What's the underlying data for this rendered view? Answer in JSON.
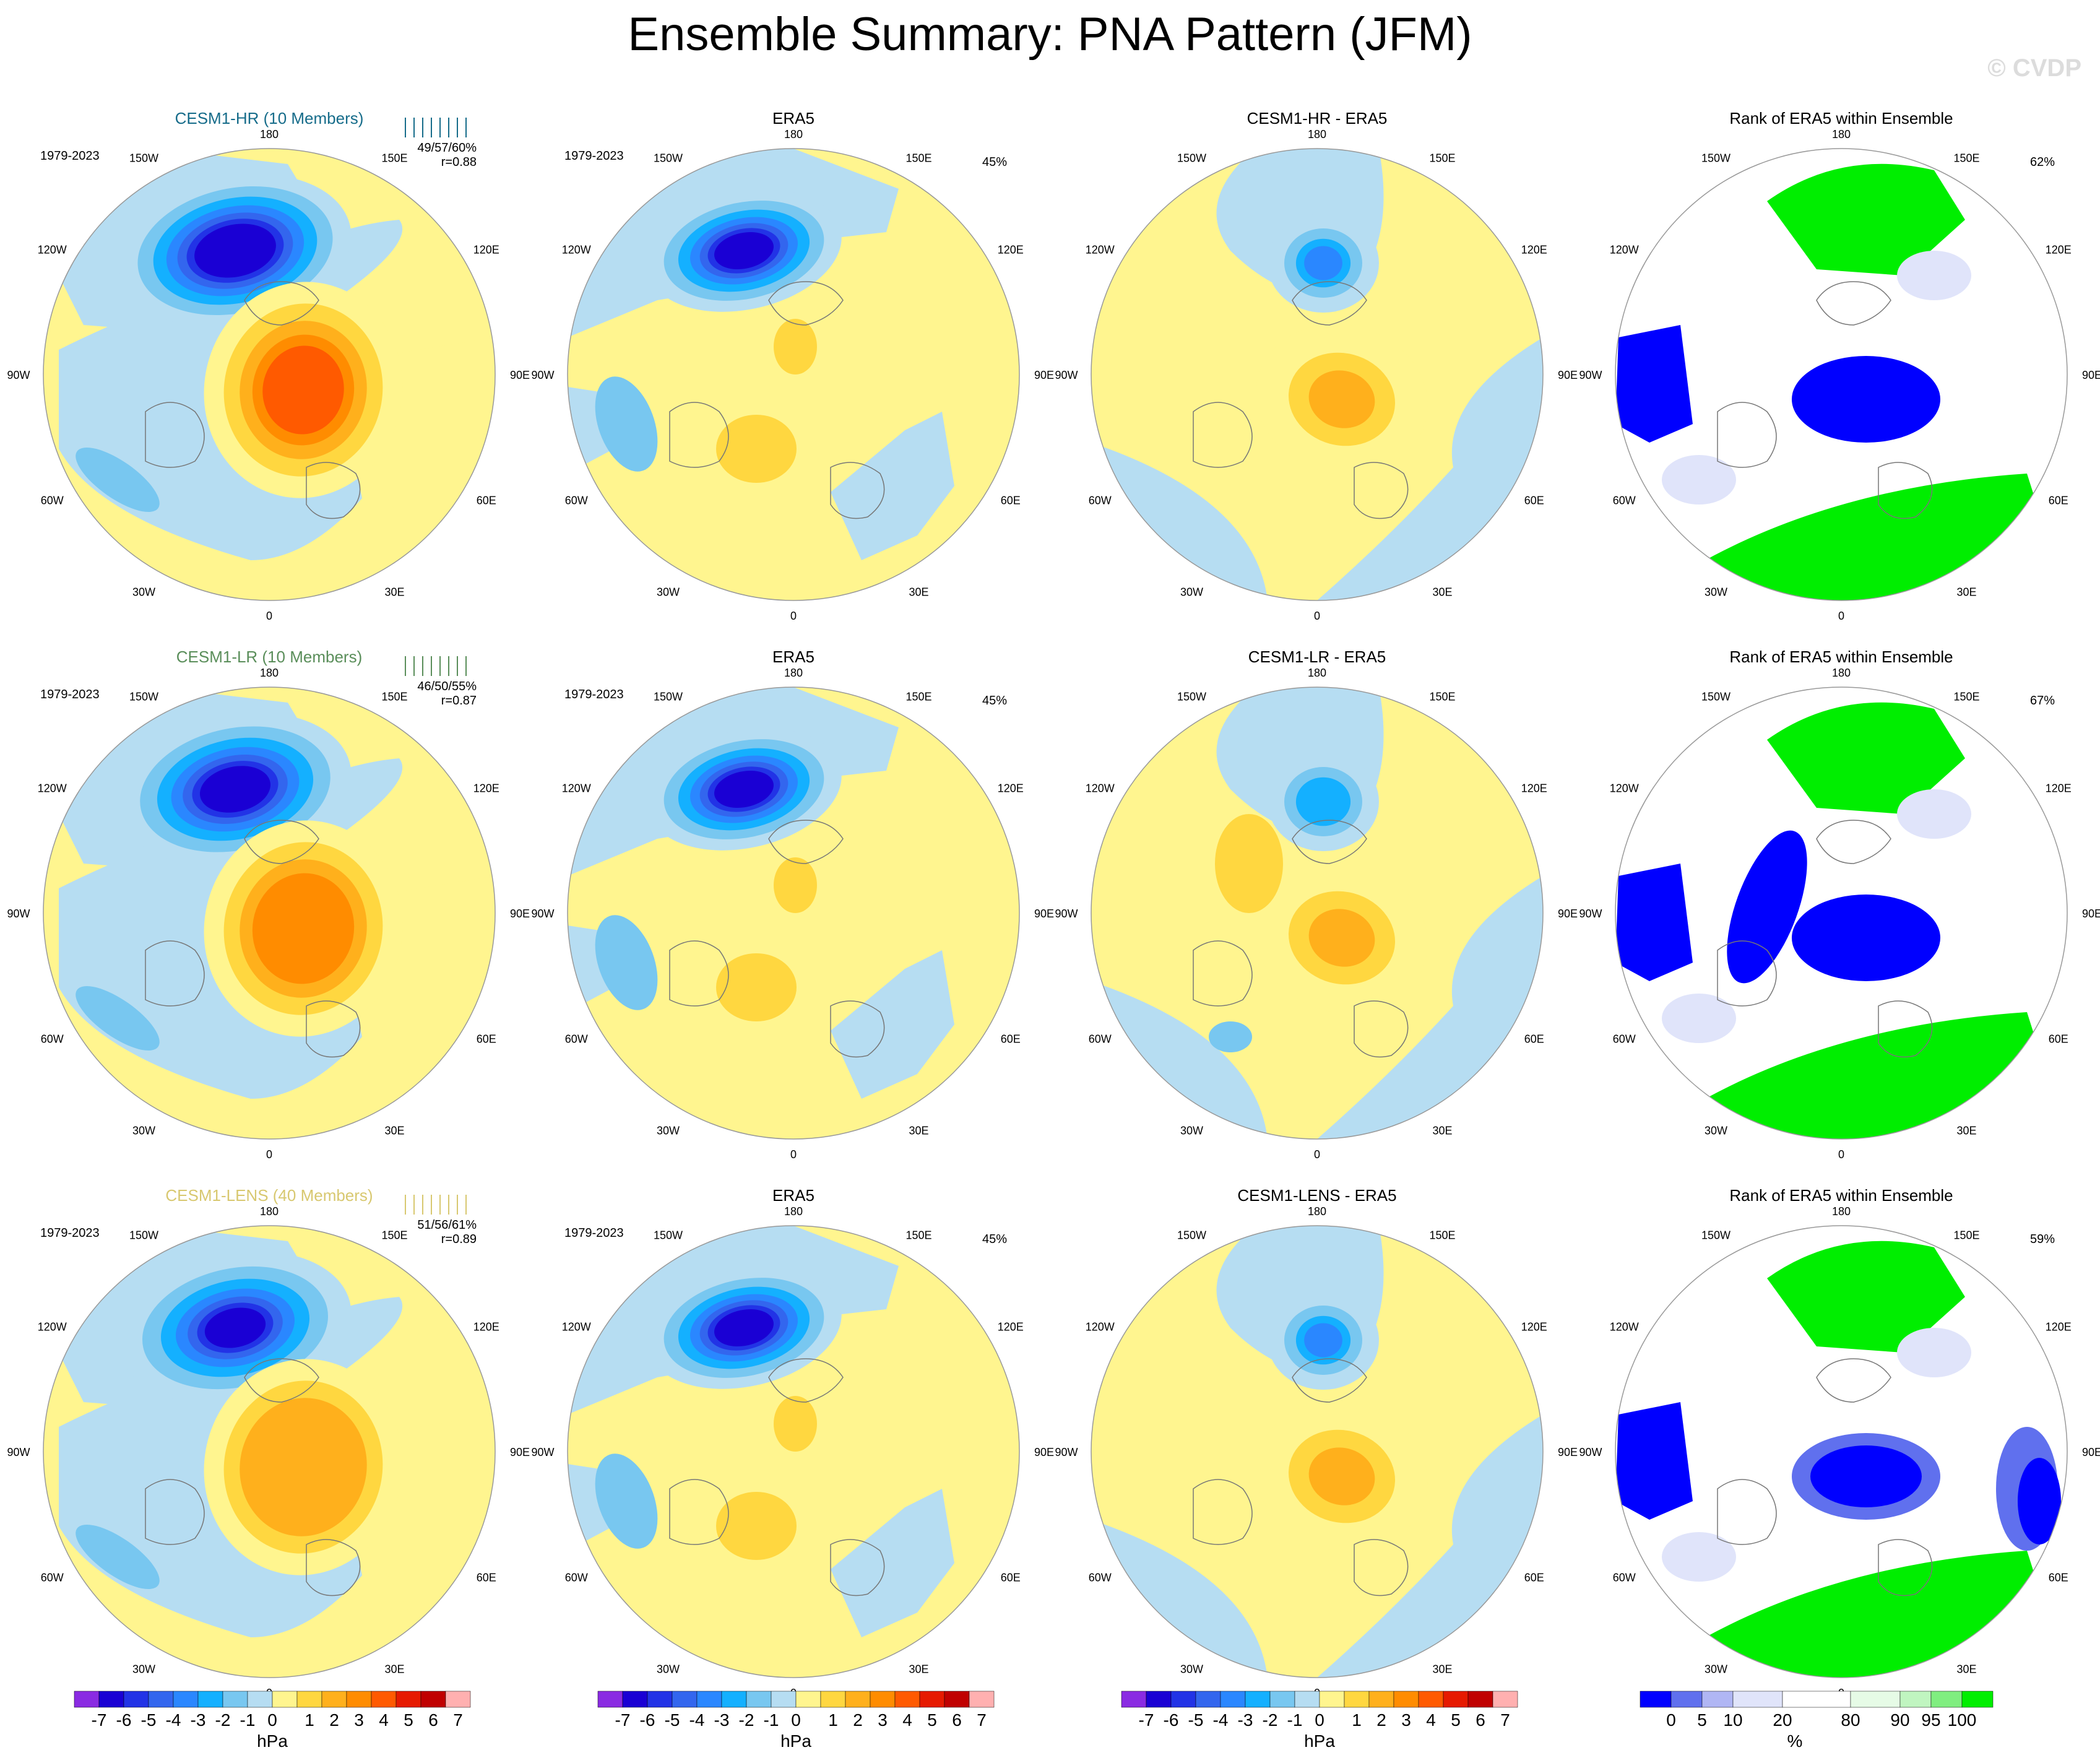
{
  "title": "Ensemble Summary: PNA Pattern (JFM)",
  "watermark": "© CVDP",
  "period": "1979-2023",
  "longitude_labels": [
    "180",
    "150E",
    "120E",
    "90E",
    "60E",
    "30E",
    "0",
    "30W",
    "60W",
    "90W",
    "120W",
    "150W"
  ],
  "colors": {
    "pattern_scale": [
      "#8a2be2",
      "#1a00d4",
      "#2233e6",
      "#3366ee",
      "#2a87ff",
      "#14b0ff",
      "#78c7f0",
      "#b6ddf2",
      "#fff58f",
      "#ffd740",
      "#ffb01c",
      "#ff8c00",
      "#ff5a00",
      "#e61a00",
      "#c00000",
      "#ffb0b0"
    ],
    "rank_scale": [
      "#0000ff",
      "#6070ee",
      "#b0b6f4",
      "#e0e4fa",
      "#ffffff",
      "#e6fbe6",
      "#c0f5c0",
      "#80ee80",
      "#00ee00"
    ],
    "hr_label": "#166c8a",
    "lr_label": "#5a8e5a",
    "lens_label": "#d8c870",
    "land_line": "#777777"
  },
  "rows": [
    {
      "model_label": "CESM1-HR (10 Members)",
      "label_color": "#166c8a",
      "stats": "49/57/60%",
      "corr": "r=0.88",
      "era5_pct": "45%",
      "diff_title": "CESM1-HR - ERA5",
      "rank_pct": "62%"
    },
    {
      "model_label": "CESM1-LR (10 Members)",
      "label_color": "#5a8e5a",
      "stats": "46/50/55%",
      "corr": "r=0.87",
      "era5_pct": "45%",
      "diff_title": "CESM1-LR - ERA5",
      "rank_pct": "67%"
    },
    {
      "model_label": "CESM1-LENS (40 Members)",
      "label_color": "#d8c870",
      "stats": "51/56/61%",
      "corr": "r=0.89",
      "era5_pct": "45%",
      "diff_title": "CESM1-LENS - ERA5",
      "rank_pct": "59%"
    }
  ],
  "era5_title": "ERA5",
  "rank_title": "Rank of ERA5 within Ensemble",
  "chart_data": [
    {
      "type": "heatmap",
      "name": "pattern colorbar",
      "units": "hPa",
      "tick_labels": [
        "-7",
        "-6",
        "-5",
        "-4",
        "-3",
        "-2",
        "-1",
        "0",
        "1",
        "2",
        "3",
        "4",
        "5",
        "6",
        "7"
      ],
      "levels": [
        -7,
        -6,
        -5,
        -4,
        -3,
        -2,
        -1,
        -0.5,
        0.5,
        1,
        2,
        3,
        4,
        5,
        6,
        7
      ]
    },
    {
      "type": "heatmap",
      "name": "rank colorbar",
      "units": "%",
      "tick_labels": [
        "0",
        "5",
        "10",
        "20",
        "80",
        "90",
        "95",
        "100"
      ],
      "levels": [
        0,
        5,
        10,
        20,
        80,
        90,
        95,
        100
      ]
    },
    {
      "type": "table",
      "name": "pattern statistics",
      "columns": [
        "model",
        "stats",
        "r",
        "ERA5 explained",
        "rank pct"
      ],
      "rows": [
        [
          "CESM1-HR",
          "49/57/60%",
          0.88,
          45,
          62
        ],
        [
          "CESM1-LR",
          "46/50/55%",
          0.87,
          45,
          67
        ],
        [
          "CESM1-LENS",
          "51/56/61%",
          0.89,
          45,
          59
        ]
      ]
    }
  ]
}
